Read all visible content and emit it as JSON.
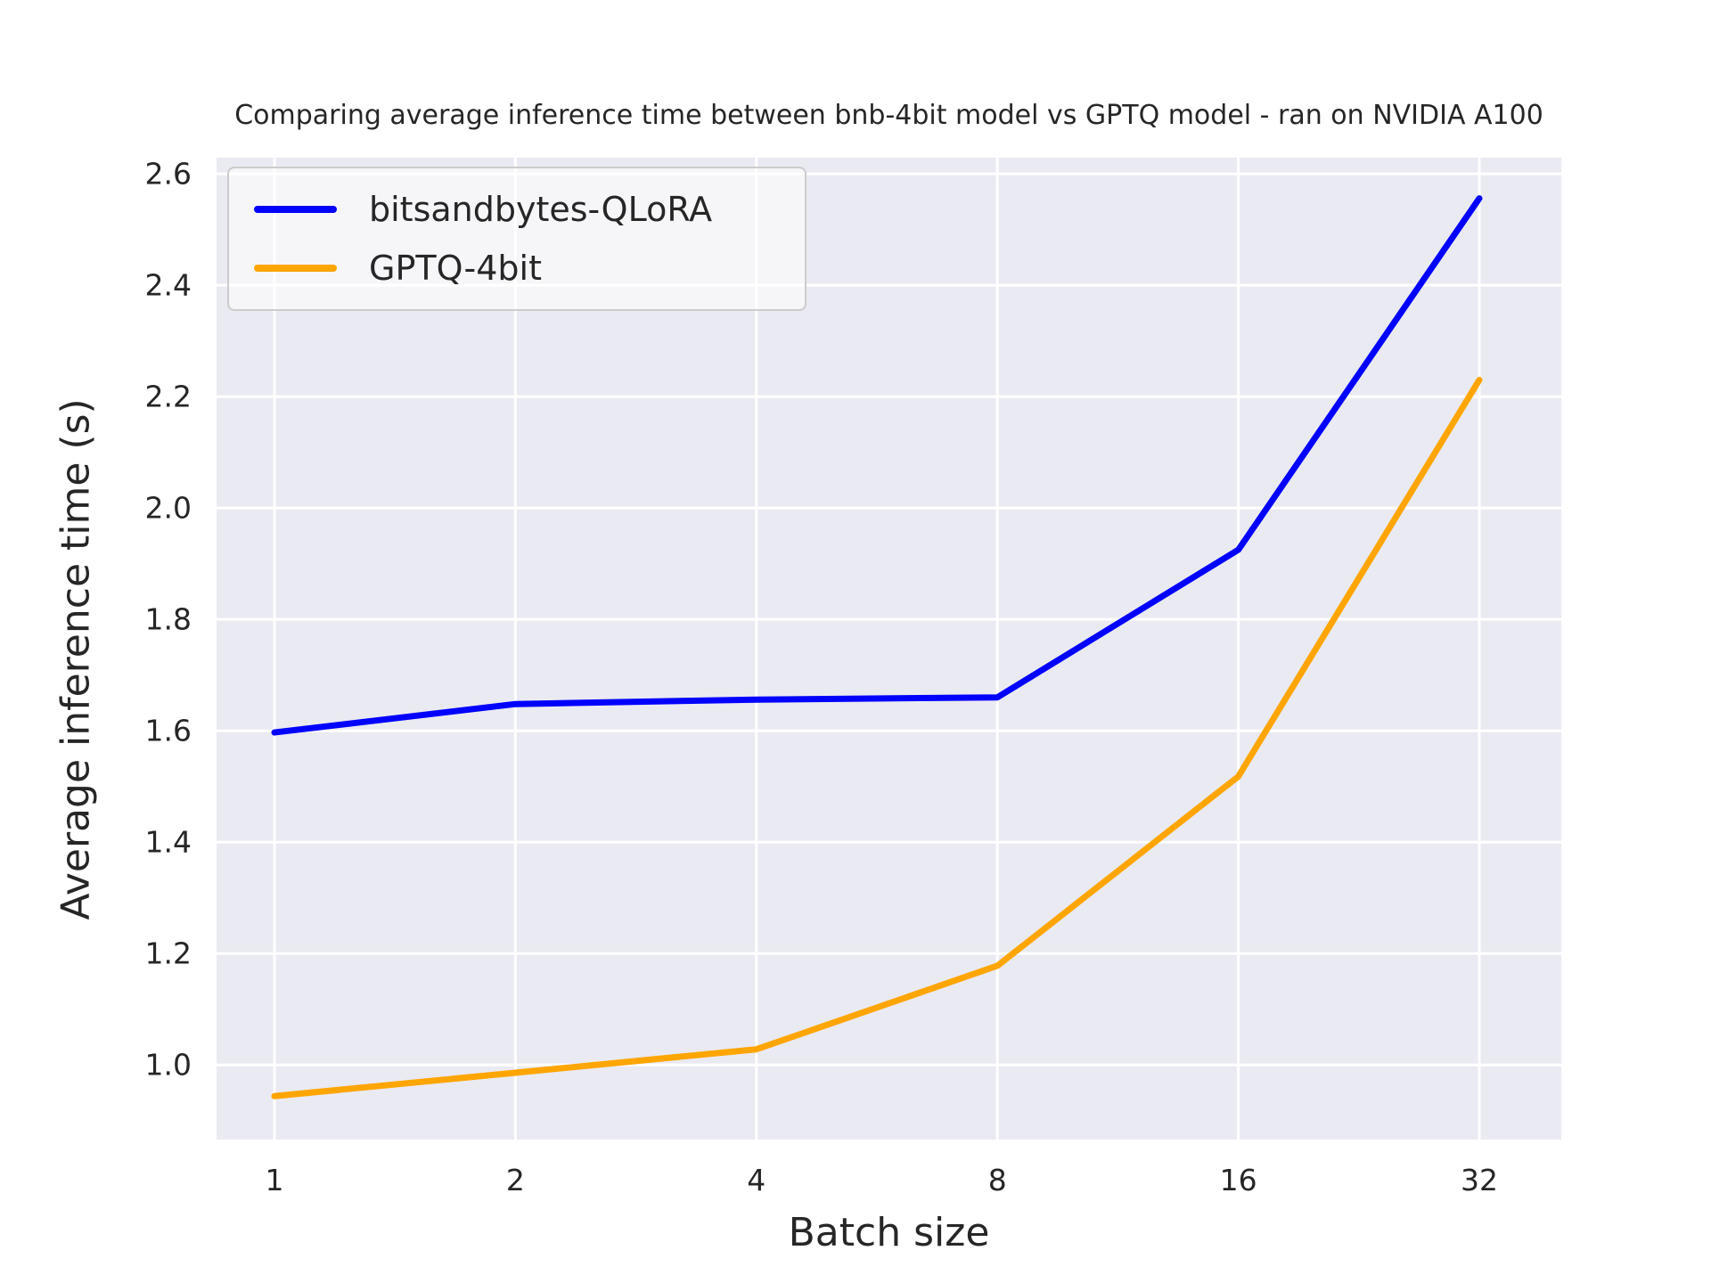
{
  "title": "Comparing average inference time between bnb-4bit model vs GPTQ model - ran on NVIDIA A100",
  "colors": {
    "bnb_line": "#0000FF",
    "gptq_line": "#FFA500",
    "plot_background": "#EAEAF2",
    "gridline": "#FFFFFF",
    "text": "#262626"
  },
  "legend": {
    "entries": [
      {
        "label": "bitsandbytes-QLoRA",
        "color": "#0000FF"
      },
      {
        "label": "GPTQ-4bit",
        "color": "#FFA500"
      }
    ]
  },
  "chart_data": {
    "type": "line",
    "title": "Comparing average inference time between bnb-4bit model vs GPTQ model - ran on NVIDIA A100",
    "xlabel": "Batch size",
    "ylabel": "Average inference time (s)",
    "categories": [
      1,
      2,
      4,
      8,
      16,
      32
    ],
    "x_tick_labels": [
      "1",
      "2",
      "4",
      "8",
      "16",
      "32"
    ],
    "y_tick_labels": [
      "2.6",
      "2.4",
      "2.2",
      "2.0",
      "1.8",
      "1.6",
      "1.4",
      "1.2",
      "1.0"
    ],
    "y_ticks": [
      2.6,
      2.4,
      2.2,
      2.0,
      1.8,
      1.6,
      1.4,
      1.2,
      1.0
    ],
    "ylim": [
      0.866,
      2.629
    ],
    "grid": true,
    "legend_position": "upper-left",
    "series": [
      {
        "name": "bitsandbytes-QLoRA",
        "color": "#0000FF",
        "values": [
          1.597,
          1.648,
          1.656,
          1.66,
          1.925,
          2.556
        ]
      },
      {
        "name": "GPTQ-4bit",
        "color": "#FFA500",
        "values": [
          0.944,
          0.986,
          1.028,
          1.178,
          1.518,
          2.23
        ]
      }
    ]
  }
}
